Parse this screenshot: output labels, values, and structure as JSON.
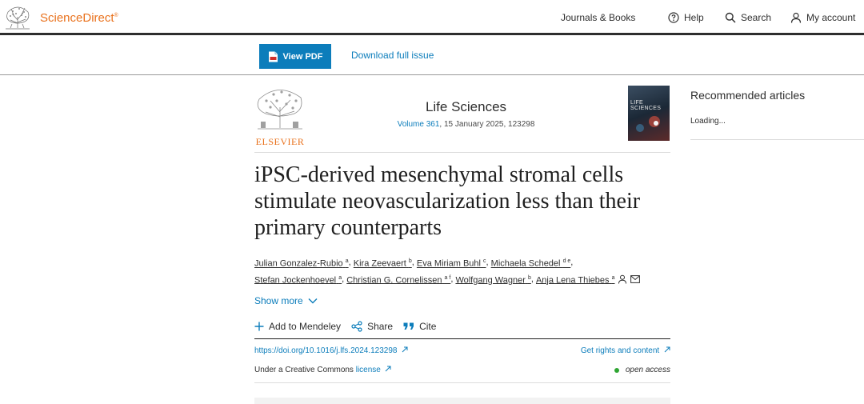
{
  "header": {
    "brand": "ScienceDirect",
    "brand_mark": "®",
    "nav": {
      "journals": "Journals & Books",
      "help": "Help",
      "search": "Search",
      "account": "My account"
    }
  },
  "toolbar": {
    "view_pdf": "View PDF",
    "download_issue": "Download full issue"
  },
  "journal": {
    "publisher_logo_text": "ELSEVIER",
    "title": "Life Sciences",
    "volume": "Volume 361",
    "date_article": ", 15 January 2025, 123298",
    "cover_text": "LIFE SCIENCES"
  },
  "recommended": {
    "title": "Recommended articles",
    "status": "Loading..."
  },
  "article": {
    "title": "iPSC-derived mesenchymal stromal cells stimulate neovascularization less than their primary counterparts",
    "authors_line1": [
      {
        "name": "Julian Gonzalez-Rubio",
        "aff": "a"
      },
      {
        "name": "Kira Zeevaert",
        "aff": "b"
      },
      {
        "name": "Eva Miriam Buhl",
        "aff": "c"
      },
      {
        "name": "Michaela Schedel",
        "aff": "d e"
      }
    ],
    "authors_line2": [
      {
        "name": "Stefan Jockenhoevel",
        "aff": "a"
      },
      {
        "name": "Christian G. Cornelissen",
        "aff": "a f"
      },
      {
        "name": "Wolfgang Wagner",
        "aff": "b"
      },
      {
        "name": "Anja Lena Thiebes",
        "aff": "a"
      }
    ],
    "show_more": "Show more",
    "actions": {
      "mendeley": "Add to Mendeley",
      "share": "Share",
      "cite": "Cite"
    },
    "doi": "https://doi.org/10.1016/j.lfs.2024.123298",
    "rights": "Get rights and content",
    "license_prefix": "Under a Creative Commons ",
    "license_link": "license",
    "open_access": "open access"
  },
  "colors": {
    "brand_orange": "#e9711c",
    "link_blue": "#0c7dbb",
    "open_access_green": "#2ea532"
  }
}
